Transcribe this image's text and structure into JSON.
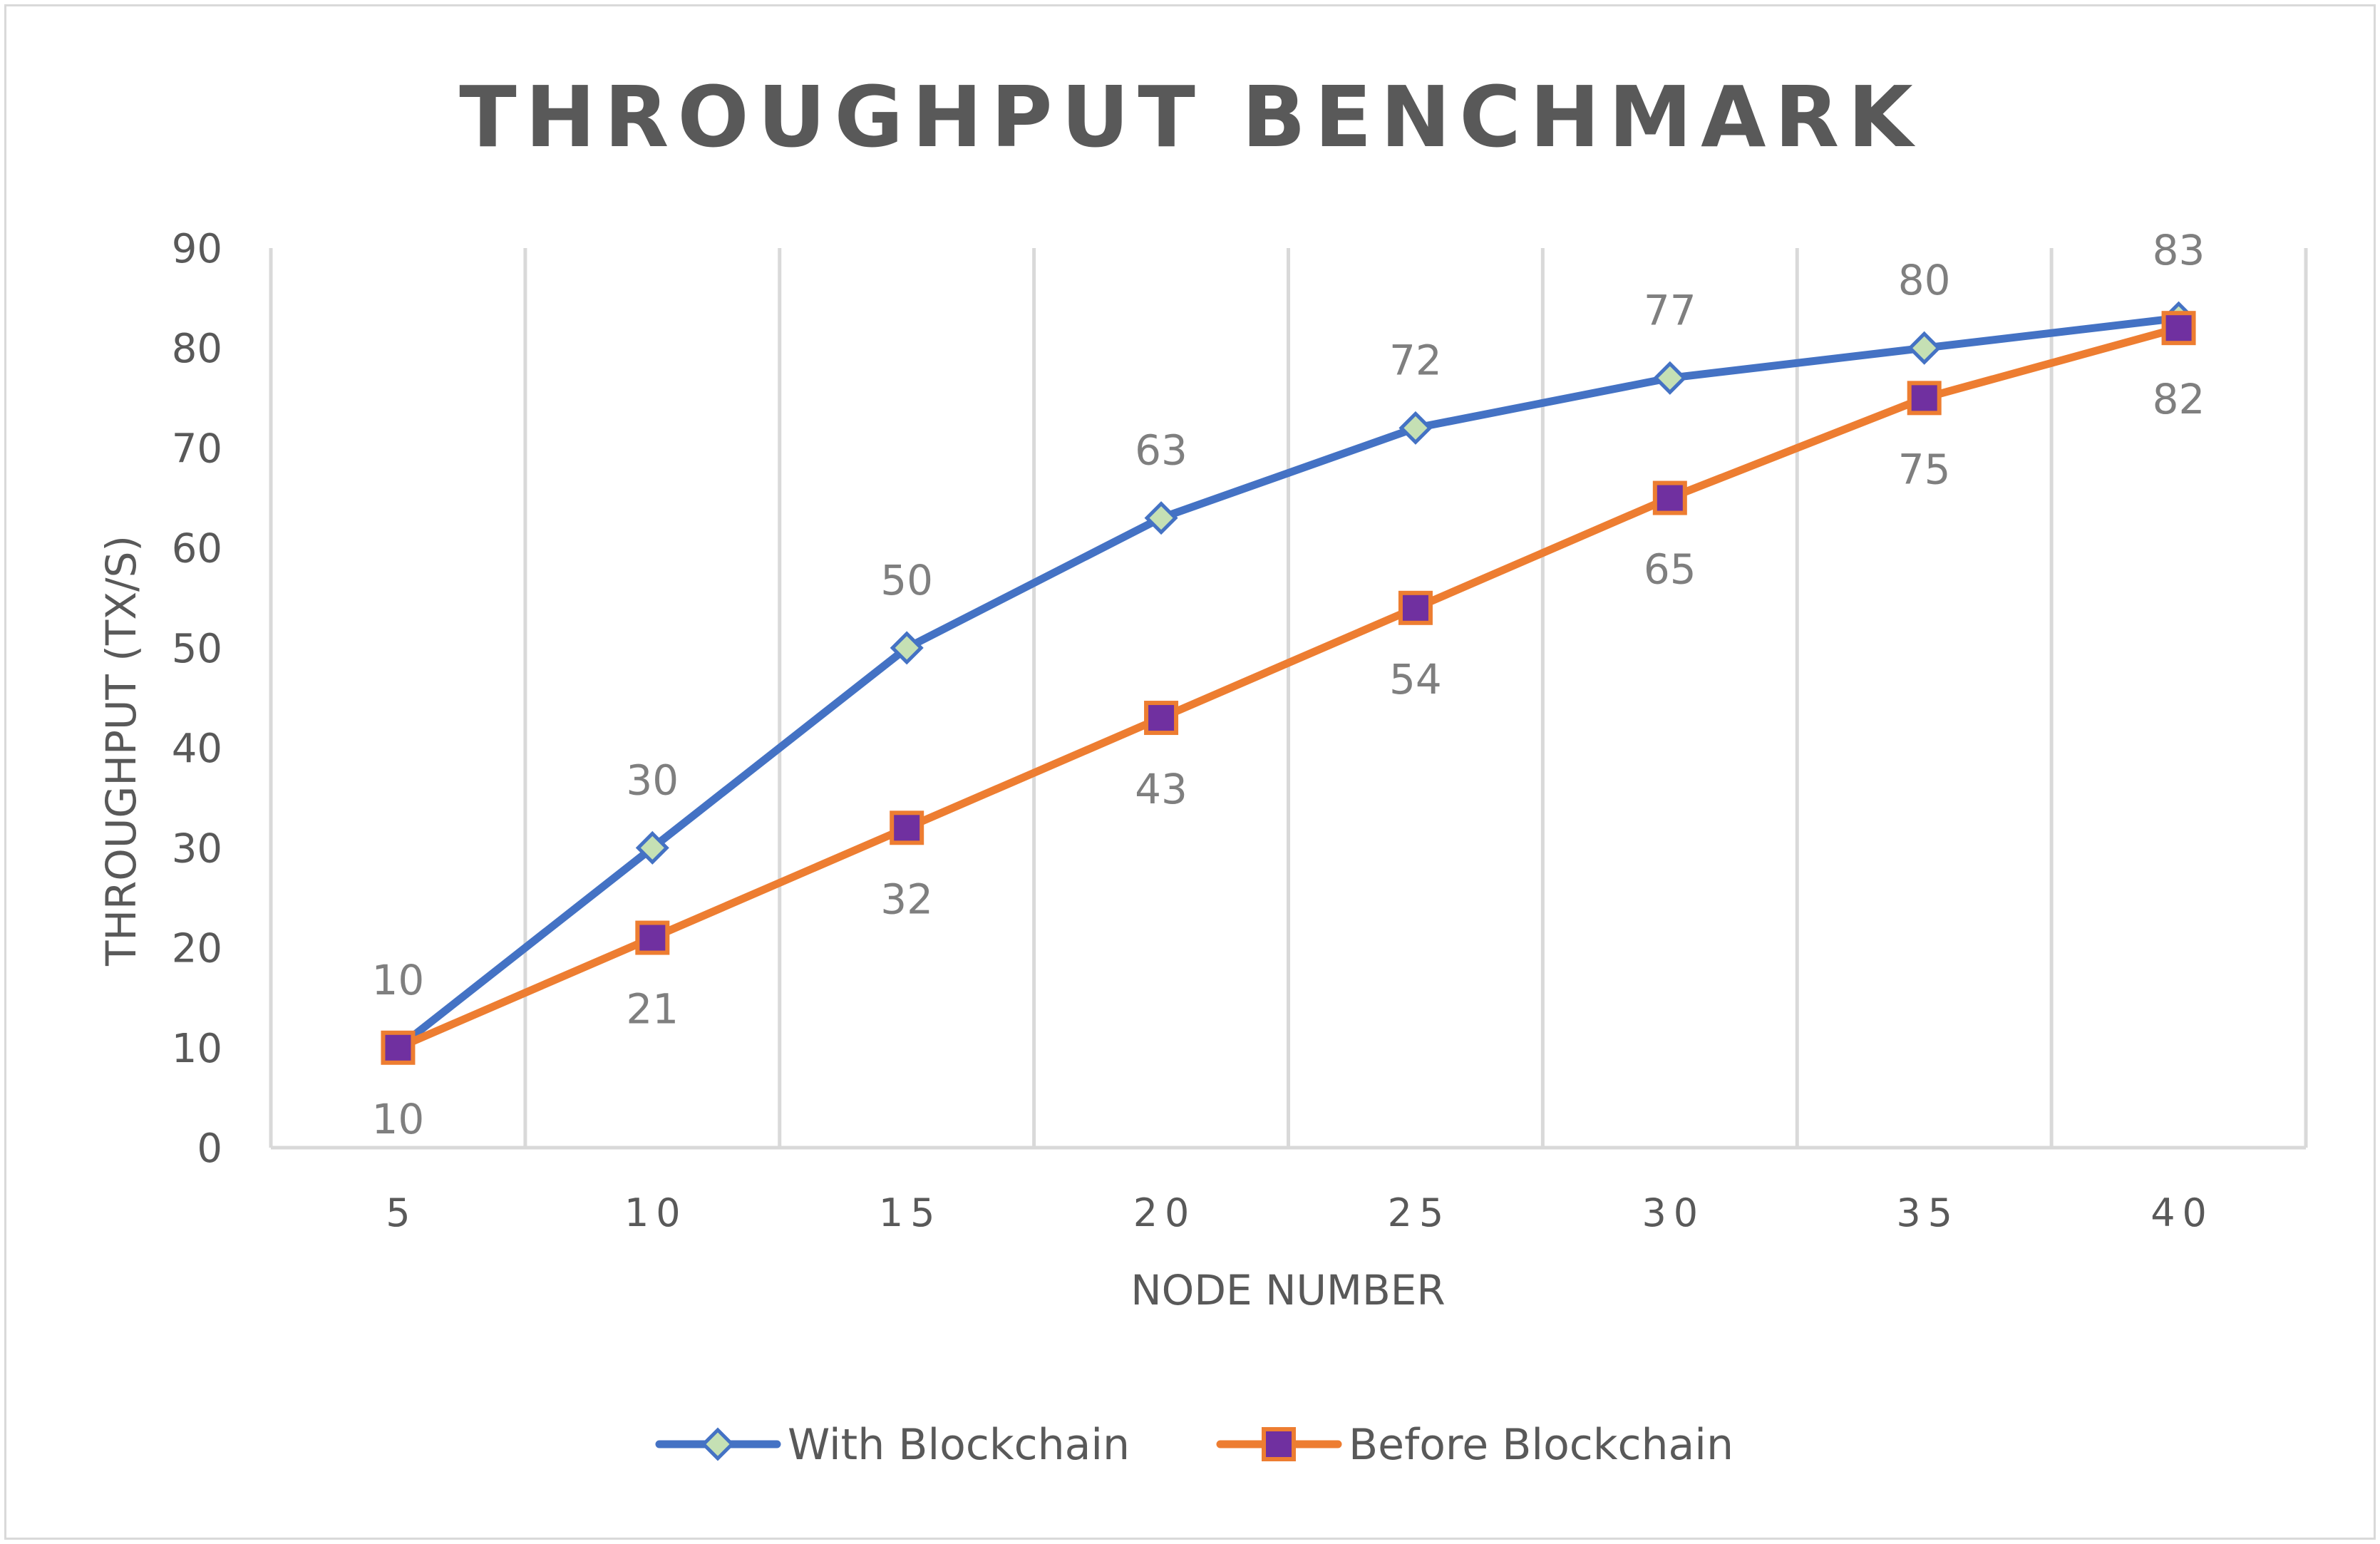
{
  "chart_data": {
    "type": "line",
    "title": "THROUGHPUT BENCHMARK",
    "xlabel": "NODE NUMBER",
    "ylabel": "THROUGHPUT (TX/S)",
    "categories": [
      "5",
      "10",
      "15",
      "20",
      "25",
      "30",
      "35",
      "40"
    ],
    "ylim": [
      0,
      90
    ],
    "yticks": [
      "0",
      "10",
      "20",
      "30",
      "40",
      "50",
      "60",
      "70",
      "80",
      "90"
    ],
    "grid": "vertical",
    "legend_position": "bottom",
    "series": [
      {
        "name": "With Blockchain",
        "values": [
          10,
          30,
          50,
          63,
          72,
          77,
          80,
          83
        ],
        "line_color": "#4472c4",
        "marker": "diamond",
        "marker_fill": "#c5e0b4",
        "marker_edge": "#4472c4",
        "label_position": "above"
      },
      {
        "name": "Before Blockchain",
        "values": [
          10,
          21,
          32,
          43,
          54,
          65,
          75,
          82
        ],
        "line_color": "#ed7d31",
        "marker": "square",
        "marker_fill": "#7030a0",
        "marker_edge": "#ed7d31",
        "label_position": "below"
      }
    ]
  }
}
